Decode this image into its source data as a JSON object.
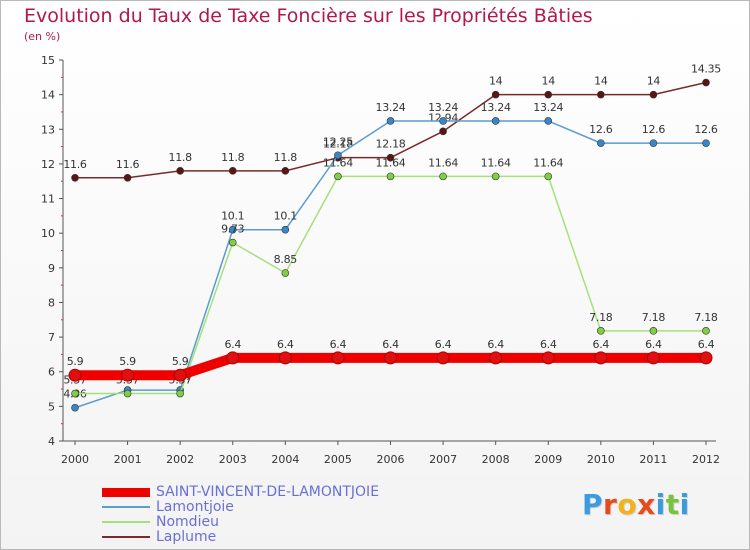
{
  "title": "Evolution du Taux de Taxe Foncière sur les Propriétés Bâties",
  "subtitle": "(en %)",
  "logo": {
    "text": "Proxiti",
    "colors": [
      "#3a9be0",
      "#e84a1c",
      "#f2b21d",
      "#e84a1c",
      "#3a9be0",
      "#7cc242",
      "#3a9be0"
    ]
  },
  "chart_data": {
    "type": "line",
    "x": [
      "2000",
      "2001",
      "2002",
      "2003",
      "2004",
      "2005",
      "2006",
      "2007",
      "2008",
      "2009",
      "2010",
      "2011",
      "2012"
    ],
    "ylim": [
      4,
      15
    ],
    "yticks": [
      4,
      5,
      6,
      7,
      8,
      9,
      10,
      11,
      12,
      13,
      14,
      15
    ],
    "grid": false,
    "legend_position": "bottom-left",
    "series": [
      {
        "name": "Laplume",
        "color": "#7a2a2a",
        "marker": "#5a1515",
        "values": [
          11.6,
          11.6,
          11.8,
          11.8,
          11.8,
          12.18,
          12.18,
          12.94,
          14,
          14,
          14,
          14,
          14.35
        ],
        "labels": [
          "11.6",
          "11.6",
          "11.8",
          "11.8",
          "11.8",
          "12.18",
          "12.18",
          "12.94",
          "14",
          "14",
          "14",
          "14",
          "14.35"
        ]
      },
      {
        "name": "Lamontjoie",
        "color": "#5a9bd0",
        "marker": "#3a86c8",
        "values": [
          4.96,
          5.47,
          5.47,
          10.1,
          10.1,
          12.25,
          13.24,
          13.24,
          13.24,
          13.24,
          12.6,
          12.6,
          12.6
        ],
        "labels": [
          "4.96",
          "5.47",
          "5.47",
          "10.1",
          "10.1",
          "12.25",
          "13.24",
          "13.24",
          "13.24",
          "13.24",
          "12.6",
          "12.6",
          "12.6"
        ]
      },
      {
        "name": "Nomdieu",
        "color": "#a6e07a",
        "marker": "#7fd040",
        "values": [
          5.37,
          5.37,
          5.37,
          9.73,
          8.85,
          11.64,
          11.64,
          11.64,
          11.64,
          11.64,
          7.18,
          7.18,
          7.18
        ],
        "labels": [
          "5.37",
          "5.37",
          "5.37",
          "9.73",
          "8.85",
          "11.64",
          "11.64",
          "11.64",
          "11.64",
          "11.64",
          "7.18",
          "7.18",
          "7.18"
        ]
      },
      {
        "name": "SAINT-VINCENT-DE-LAMONTJOIE",
        "color": "#ee0000",
        "marker": "#e01010",
        "values": [
          5.9,
          5.9,
          5.9,
          6.4,
          6.4,
          6.4,
          6.4,
          6.4,
          6.4,
          6.4,
          6.4,
          6.4,
          6.4
        ],
        "labels": [
          "5.9",
          "5.9",
          "5.9",
          "6.4",
          "6.4",
          "6.4",
          "6.4",
          "6.4",
          "6.4",
          "6.4",
          "6.4",
          "6.4",
          "6.4"
        ]
      }
    ],
    "legend": [
      {
        "name": "SAINT-VINCENT-DE-LAMONTJOIE",
        "color": "#ee0000"
      },
      {
        "name": "Lamontjoie",
        "color": "#5a9bd0"
      },
      {
        "name": "Nomdieu",
        "color": "#a6e07a"
      },
      {
        "name": "Laplume",
        "color": "#7a2a2a"
      }
    ]
  }
}
